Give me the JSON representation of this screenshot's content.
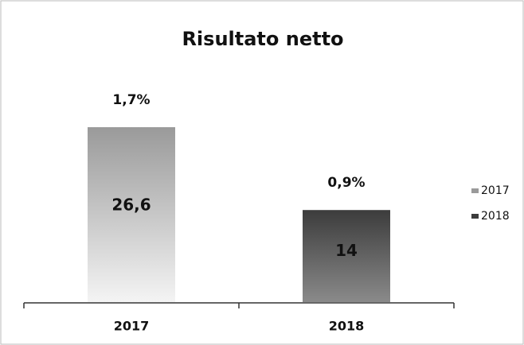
{
  "chart_data": {
    "type": "bar",
    "title": "Risultato netto",
    "categories": [
      "2017",
      "2018"
    ],
    "values": [
      26.6,
      14
    ],
    "value_labels": [
      "26,6",
      "14"
    ],
    "annotations": [
      "1,7%",
      "0,9%"
    ],
    "colors": [
      "#9a9a9a",
      "#3c3c3c"
    ],
    "legend": "right"
  }
}
